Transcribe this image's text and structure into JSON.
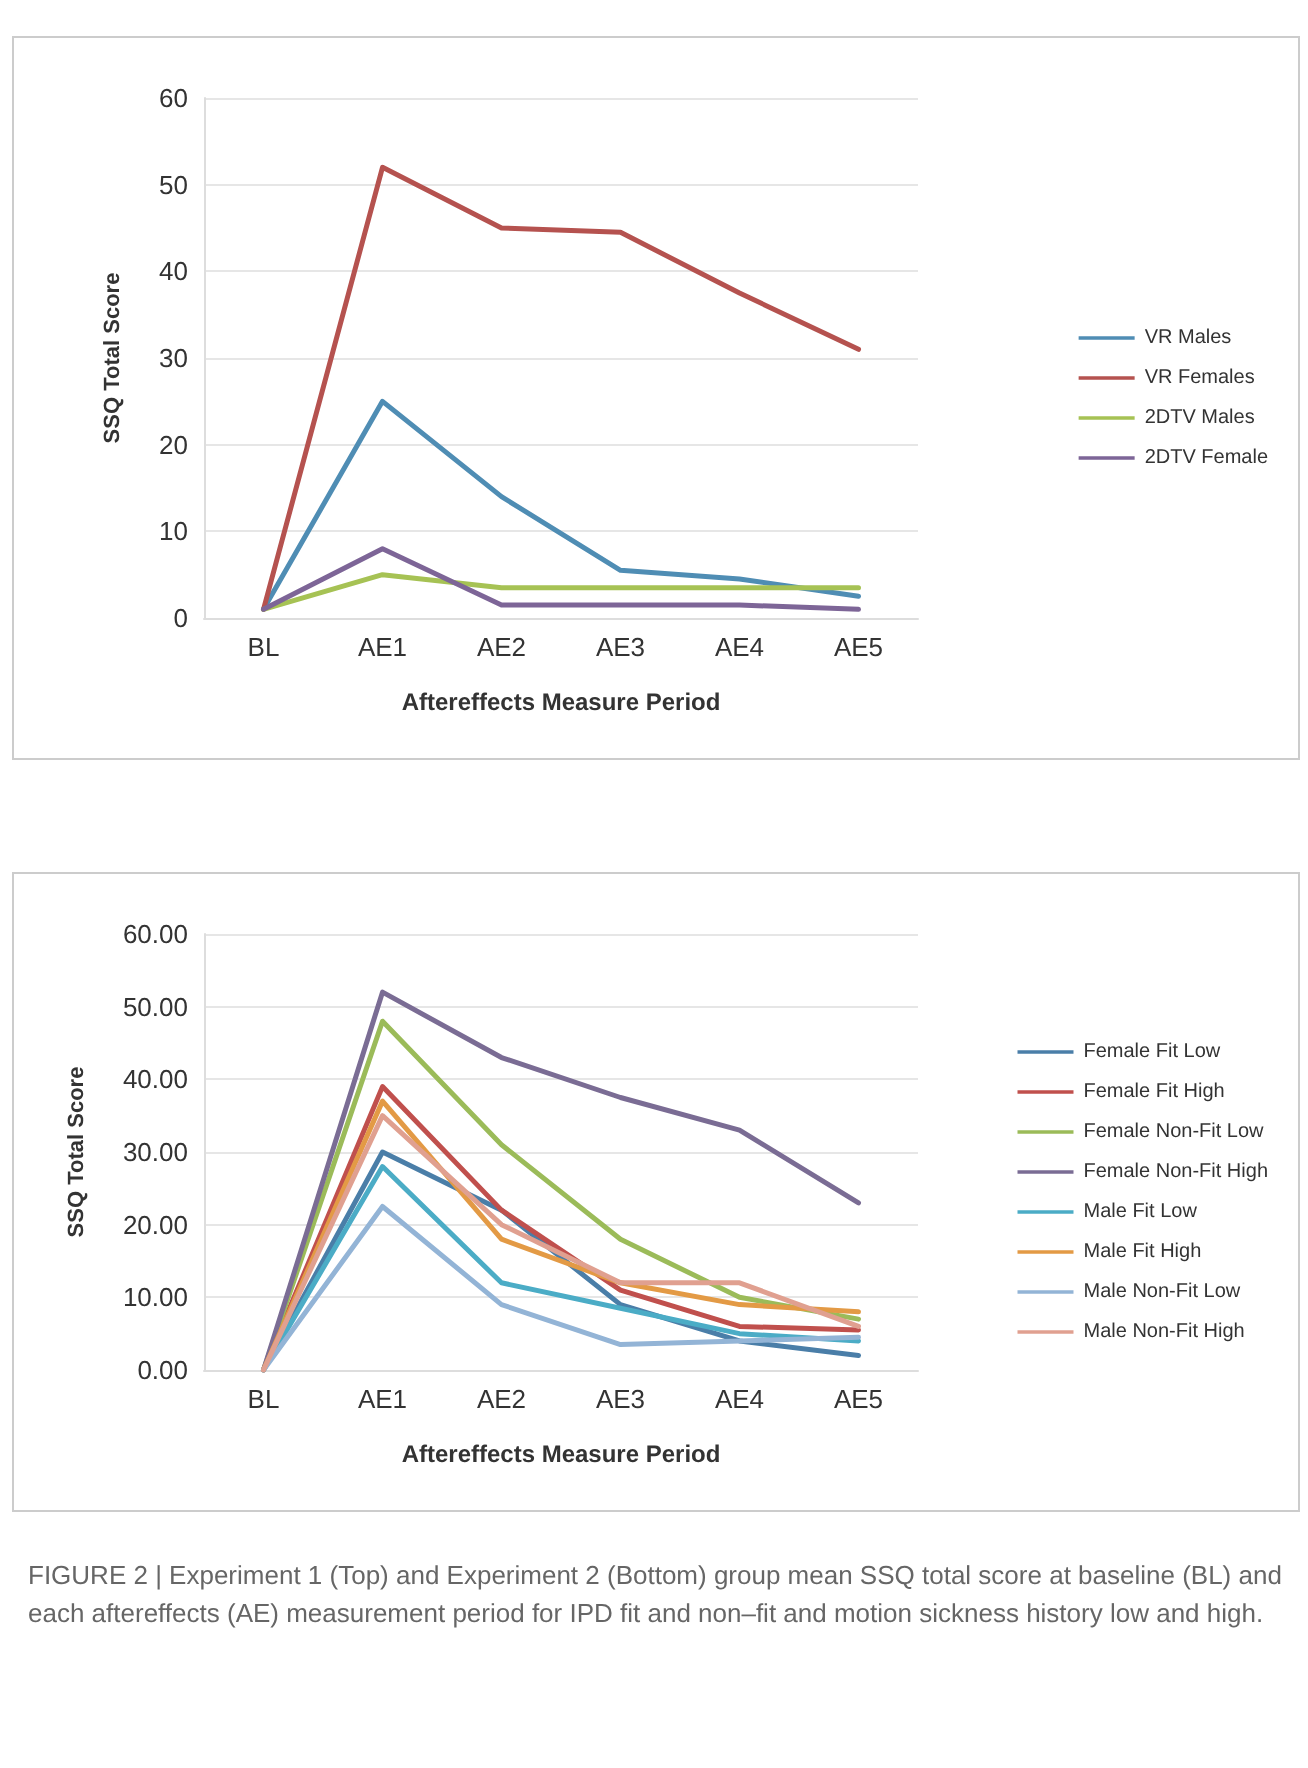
{
  "chart_data": [
    {
      "type": "line",
      "xlabel": "Aftereffects Measure Period",
      "ylabel": "SSQ Total Score",
      "categories": [
        "BL",
        "AE1",
        "AE2",
        "AE3",
        "AE4",
        "AE5"
      ],
      "ylim": [
        0,
        60
      ],
      "yticks": [
        0,
        10,
        20,
        30,
        40,
        50,
        60
      ],
      "grid": "y",
      "legend": "right",
      "marker": "none",
      "series": [
        {
          "name": "VR Males",
          "color": "#4f8db4",
          "values": [
            1,
            25,
            14,
            5.5,
            4.5,
            2.5
          ]
        },
        {
          "name": "VR Females",
          "color": "#b5524f",
          "values": [
            1,
            52,
            45,
            44.5,
            37.5,
            31
          ]
        },
        {
          "name": "2DTV Males",
          "color": "#a6c254",
          "values": [
            1,
            5,
            3.5,
            3.5,
            3.5,
            3.5
          ]
        },
        {
          "name": "2DTV Female",
          "color": "#7d6597",
          "values": [
            1,
            8,
            1.5,
            1.5,
            1.5,
            1
          ]
        }
      ]
    },
    {
      "type": "line",
      "xlabel": "Aftereffects Measure Period",
      "ylabel": "SSQ Total Score",
      "categories": [
        "BL",
        "AE1",
        "AE2",
        "AE3",
        "AE4",
        "AE5"
      ],
      "ylim": [
        0,
        60
      ],
      "yticks": [
        {
          "value": 0,
          "label": "0.00"
        },
        {
          "value": 10,
          "label": "10.00"
        },
        {
          "value": 20,
          "label": "20.00"
        },
        {
          "value": 30,
          "label": "30.00"
        },
        {
          "value": 40,
          "label": "40.00"
        },
        {
          "value": 50,
          "label": "50.00"
        },
        {
          "value": 60,
          "label": "60.00"
        }
      ],
      "grid": "y",
      "legend": "right",
      "marker": "none",
      "series": [
        {
          "name": "Female Fit Low",
          "color": "#4a7ea8",
          "values": [
            0,
            30,
            22,
            9,
            4,
            2
          ]
        },
        {
          "name": "Female Fit High",
          "color": "#c0504d",
          "values": [
            0,
            39,
            22,
            11,
            6,
            5.5
          ]
        },
        {
          "name": "Female Non-Fit Low",
          "color": "#9bbb59",
          "values": [
            0,
            48,
            31,
            18,
            10,
            7
          ]
        },
        {
          "name": "Female Non-Fit High",
          "color": "#7a6c94",
          "values": [
            0,
            52,
            43,
            37.5,
            33,
            23
          ]
        },
        {
          "name": "Male Fit Low",
          "color": "#4bacc6",
          "values": [
            0,
            28,
            12,
            8.5,
            5,
            4
          ]
        },
        {
          "name": "Male Fit High",
          "color": "#e39a45",
          "values": [
            0,
            37,
            18,
            12,
            9,
            8
          ]
        },
        {
          "name": "Male Non-Fit Low",
          "color": "#93b4d6",
          "values": [
            0,
            22.5,
            9,
            3.5,
            4,
            4.5
          ]
        },
        {
          "name": "Male Non-Fit High",
          "color": "#e0a090",
          "values": [
            0,
            35,
            20,
            12,
            12,
            6
          ]
        }
      ],
      "annotations": [
        "FIGURE 2 | Experiment 1 (Top) and Experiment 2 (Bottom) group mean SSQ total score at baseline (BL) and each aftereffects (AE) measurement period for IPD fit and non–fit and motion sickness history low and high."
      ]
    }
  ]
}
